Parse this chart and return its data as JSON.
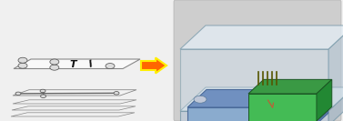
{
  "background_color": "#f0f0f0",
  "arrow_body_color": "#FF6600",
  "arrow_outline_color": "#FFEE00",
  "plate_face_top": "#f9f9f9",
  "plate_face_mid": "#f0f0f0",
  "plate_edge": "#888888",
  "channel_color": "#666666",
  "hole_face": "#dddddd",
  "hole_edge": "#555555",
  "text_color": "#111111",
  "box_top_face": "#dce8f0",
  "box_front_face": "#c8dce8",
  "box_right_face": "#b8ccd8",
  "box_bottom_face": "#a8bcc8",
  "box_edge": "#7a9aaa",
  "chip_top": "#7090c0",
  "chip_front": "#8aabce",
  "chip_edge": "#4a6a99",
  "pcb_top": "#3a9944",
  "pcb_front": "#2a7733",
  "pcb_edge": "#1a5522",
  "wire_color": "#cc5533",
  "pin_color": "#555500",
  "screw_face": "#c0c8d8",
  "screw_edge": "#5a7a99"
}
